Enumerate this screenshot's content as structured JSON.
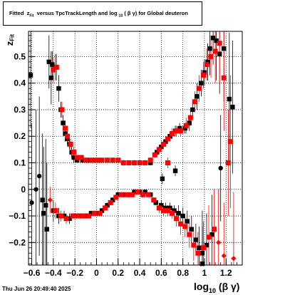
{
  "title": {
    "prefix": "Fitted",
    "z": "z",
    "z_sub": "Fit",
    "middle": "versus TpcTrackLength and log",
    "log_sub": "10",
    "rest": "( β γ) for Global deuteron"
  },
  "axes": {
    "ylabel_main": "z",
    "ylabel_sub": "Fit",
    "xlabel_main": "log",
    "xlabel_sub": "10",
    "xlabel_rest": "(β γ)"
  },
  "timestamp": "Thu Jun 26 20:49:40 2025",
  "colors": {
    "black_series": "#000000",
    "red_series": "#ff0000",
    "grid": "#000000"
  },
  "chart_data": {
    "type": "scatter",
    "xlim": [
      -0.63,
      1.35
    ],
    "ylim": [
      -0.285,
      0.595
    ],
    "xticks": [
      -0.6,
      -0.4,
      -0.2,
      0,
      0.2,
      0.4,
      0.6,
      0.8,
      1,
      1.2
    ],
    "xtick_labels": [
      "−0.6",
      "−0.4",
      "−0.2",
      "0",
      "0.2",
      "0.4",
      "0.6",
      "0.8",
      "1",
      "1.2"
    ],
    "yticks": [
      -0.2,
      -0.1,
      0,
      0.1,
      0.2,
      0.3,
      0.4,
      0.5
    ],
    "ytick_labels": [
      "−0.2",
      "−0.1",
      "0",
      "0.1",
      "0.2",
      "0.3",
      "0.4",
      "0.5"
    ],
    "grid": true,
    "series": [
      {
        "color": "black",
        "points": [
          [
            -0.61,
            0.43,
            0.2
          ],
          [
            -0.6,
            -0.05,
            0.3
          ],
          [
            -0.56,
            0.0,
            0.3
          ],
          [
            -0.53,
            0.05,
            0.3
          ],
          [
            -0.5,
            -0.04,
            0.25
          ],
          [
            -0.49,
            -0.09,
            0.25
          ],
          [
            -0.47,
            -0.06,
            0.25
          ],
          [
            -0.46,
            -0.15,
            0.25
          ],
          [
            -0.44,
            0.48,
            0.1
          ],
          [
            -0.42,
            0.42,
            0.1
          ],
          [
            -0.41,
            0.47,
            0.05
          ],
          [
            -0.38,
            0.46,
            0.05
          ],
          [
            -0.35,
            0.38,
            0.05
          ],
          [
            -0.33,
            0.3,
            0.03
          ],
          [
            -0.31,
            0.25,
            0.03
          ],
          [
            -0.29,
            0.21,
            0.03
          ],
          [
            -0.27,
            0.19,
            0.02
          ],
          [
            -0.25,
            0.17,
            0.02
          ],
          [
            -0.23,
            0.14,
            0.02
          ],
          [
            -0.21,
            0.12,
            0.02
          ],
          [
            -0.18,
            0.11,
            0.01
          ],
          [
            -0.13,
            0.11,
            0.01
          ],
          [
            -0.08,
            0.11,
            0.01
          ],
          [
            -0.03,
            0.11,
            0.01
          ],
          [
            0.03,
            0.11,
            0.01
          ],
          [
            0.1,
            0.11,
            0.01
          ],
          [
            0.15,
            0.11,
            0.01
          ],
          [
            0.2,
            0.11,
            0.01
          ],
          [
            0.25,
            0.1,
            0.01
          ],
          [
            0.3,
            0.1,
            0.01
          ],
          [
            0.35,
            0.1,
            0.01
          ],
          [
            0.4,
            0.1,
            0.01
          ],
          [
            0.45,
            0.1,
            0.01
          ],
          [
            0.5,
            0.1,
            0.01
          ],
          [
            0.56,
            0.14,
            0.01
          ],
          [
            0.6,
            0.16,
            0.01
          ],
          [
            0.64,
            0.18,
            0.01
          ],
          [
            0.68,
            0.2,
            0.01
          ],
          [
            0.73,
            0.22,
            0.02
          ],
          [
            0.77,
            0.23,
            0.02
          ],
          [
            0.82,
            0.23,
            0.02
          ],
          [
            0.86,
            0.25,
            0.03
          ],
          [
            0.89,
            0.3,
            0.03
          ],
          [
            0.93,
            0.35,
            0.05
          ],
          [
            0.97,
            0.4,
            0.05
          ],
          [
            1.0,
            0.44,
            0.05
          ],
          [
            1.03,
            0.48,
            0.07
          ],
          [
            1.05,
            0.53,
            0.1
          ],
          [
            1.08,
            0.57,
            0.1
          ],
          [
            1.11,
            0.56,
            0.15
          ],
          [
            1.14,
            0.51,
            0.15
          ],
          [
            1.18,
            0.53,
            0.2
          ],
          [
            -0.4,
            -0.08,
            0.04
          ],
          [
            -0.35,
            -0.1,
            0.03
          ],
          [
            -0.3,
            -0.1,
            0.02
          ],
          [
            -0.25,
            -0.11,
            0.02
          ],
          [
            -0.2,
            -0.1,
            0.01
          ],
          [
            -0.15,
            -0.1,
            0.01
          ],
          [
            -0.1,
            -0.1,
            0.01
          ],
          [
            -0.05,
            -0.09,
            0.01
          ],
          [
            0.0,
            -0.09,
            0.01
          ],
          [
            0.05,
            -0.08,
            0.01
          ],
          [
            0.1,
            -0.06,
            0.01
          ],
          [
            0.15,
            -0.04,
            0.01
          ],
          [
            0.2,
            -0.02,
            0.01
          ],
          [
            0.25,
            -0.02,
            0.01
          ],
          [
            0.3,
            -0.02,
            0.01
          ],
          [
            0.35,
            -0.01,
            0.01
          ],
          [
            0.4,
            -0.01,
            0.01
          ],
          [
            0.45,
            -0.01,
            0.01
          ],
          [
            0.5,
            -0.02,
            0.01
          ],
          [
            0.55,
            -0.05,
            0.01
          ],
          [
            0.6,
            -0.06,
            0.02
          ],
          [
            0.64,
            -0.07,
            0.02
          ],
          [
            0.68,
            -0.07,
            0.02
          ],
          [
            0.72,
            -0.08,
            0.02
          ],
          [
            0.76,
            -0.09,
            0.03
          ],
          [
            0.8,
            -0.1,
            0.03
          ],
          [
            0.84,
            -0.12,
            0.04
          ],
          [
            0.88,
            -0.15,
            0.05
          ],
          [
            0.92,
            -0.19,
            0.06
          ],
          [
            0.95,
            -0.22,
            0.08
          ],
          [
            0.98,
            -0.24,
            0.1
          ],
          [
            1.02,
            -0.21,
            0.12
          ],
          [
            1.07,
            -0.17,
            0.15
          ],
          [
            1.15,
            0.08,
            0.2
          ],
          [
            1.23,
            0.34,
            0.25
          ],
          [
            1.26,
            0.31,
            0.25
          ],
          [
            0.61,
            0.04,
            0.02
          ],
          [
            0.73,
            0.07,
            0.02
          ],
          [
            0.98,
            -0.28,
            0.2
          ]
        ]
      },
      {
        "color": "red",
        "points": [
          [
            -0.4,
            0.45,
            0.05
          ],
          [
            -0.37,
            0.46,
            0.05
          ],
          [
            -0.32,
            0.3,
            0.03
          ],
          [
            -0.29,
            0.23,
            0.03
          ],
          [
            -0.27,
            0.2,
            0.02
          ],
          [
            -0.24,
            0.17,
            0.02
          ],
          [
            -0.21,
            0.14,
            0.02
          ],
          [
            -0.18,
            0.12,
            0.01
          ],
          [
            -0.14,
            0.12,
            0.01
          ],
          [
            -0.1,
            0.11,
            0.01
          ],
          [
            -0.05,
            0.11,
            0.01
          ],
          [
            0.0,
            0.11,
            0.01
          ],
          [
            0.05,
            0.11,
            0.01
          ],
          [
            0.1,
            0.11,
            0.01
          ],
          [
            0.15,
            0.11,
            0.01
          ],
          [
            0.2,
            0.11,
            0.01
          ],
          [
            0.25,
            0.1,
            0.01
          ],
          [
            0.3,
            0.1,
            0.01
          ],
          [
            0.35,
            0.1,
            0.01
          ],
          [
            0.4,
            0.1,
            0.01
          ],
          [
            0.45,
            0.1,
            0.01
          ],
          [
            0.5,
            0.11,
            0.01
          ],
          [
            0.54,
            0.13,
            0.01
          ],
          [
            0.58,
            0.15,
            0.01
          ],
          [
            0.62,
            0.17,
            0.01
          ],
          [
            0.66,
            0.19,
            0.01
          ],
          [
            0.7,
            0.21,
            0.02
          ],
          [
            0.74,
            0.22,
            0.02
          ],
          [
            0.78,
            0.22,
            0.02
          ],
          [
            0.83,
            0.24,
            0.03
          ],
          [
            0.87,
            0.27,
            0.03
          ],
          [
            0.91,
            0.33,
            0.04
          ],
          [
            0.95,
            0.38,
            0.05
          ],
          [
            0.99,
            0.43,
            0.05
          ],
          [
            1.02,
            0.47,
            0.06
          ],
          [
            1.06,
            0.5,
            0.08
          ],
          [
            1.1,
            0.52,
            0.12
          ],
          [
            1.14,
            0.55,
            0.15
          ],
          [
            1.18,
            0.42,
            0.2
          ],
          [
            1.24,
            0.18,
            0.25
          ],
          [
            -0.43,
            -0.04,
            0.05
          ],
          [
            -0.38,
            -0.08,
            0.03
          ],
          [
            -0.33,
            -0.1,
            0.02
          ],
          [
            -0.28,
            -0.11,
            0.02
          ],
          [
            -0.22,
            -0.1,
            0.01
          ],
          [
            -0.17,
            -0.1,
            0.01
          ],
          [
            -0.12,
            -0.1,
            0.01
          ],
          [
            -0.07,
            -0.1,
            0.01
          ],
          [
            -0.02,
            -0.09,
            0.01
          ],
          [
            0.03,
            -0.09,
            0.01
          ],
          [
            0.08,
            -0.07,
            0.01
          ],
          [
            0.13,
            -0.05,
            0.01
          ],
          [
            0.18,
            -0.03,
            0.01
          ],
          [
            0.23,
            -0.02,
            0.01
          ],
          [
            0.28,
            -0.02,
            0.01
          ],
          [
            0.33,
            -0.02,
            0.01
          ],
          [
            0.38,
            -0.01,
            0.01
          ],
          [
            0.43,
            -0.02,
            0.01
          ],
          [
            0.48,
            -0.02,
            0.01
          ],
          [
            0.53,
            -0.04,
            0.01
          ],
          [
            0.58,
            -0.07,
            0.02
          ],
          [
            0.62,
            -0.08,
            0.02
          ],
          [
            0.66,
            -0.08,
            0.02
          ],
          [
            0.7,
            -0.09,
            0.02
          ],
          [
            0.74,
            -0.11,
            0.03
          ],
          [
            0.78,
            -0.13,
            0.04
          ],
          [
            0.82,
            -0.14,
            0.04
          ],
          [
            0.86,
            -0.17,
            0.05
          ],
          [
            0.9,
            -0.21,
            0.06
          ],
          [
            0.94,
            -0.24,
            0.08
          ],
          [
            0.99,
            -0.22,
            0.1
          ],
          [
            1.04,
            -0.18,
            0.12
          ],
          [
            1.09,
            -0.15,
            0.15
          ],
          [
            1.13,
            -0.2,
            0.2
          ],
          [
            1.18,
            -0.25,
            0.2
          ],
          [
            1.27,
            -0.26,
            0.25
          ],
          [
            1.22,
            0.1,
            0.2
          ],
          [
            0.66,
            0.1,
            0.02
          ]
        ]
      }
    ]
  }
}
